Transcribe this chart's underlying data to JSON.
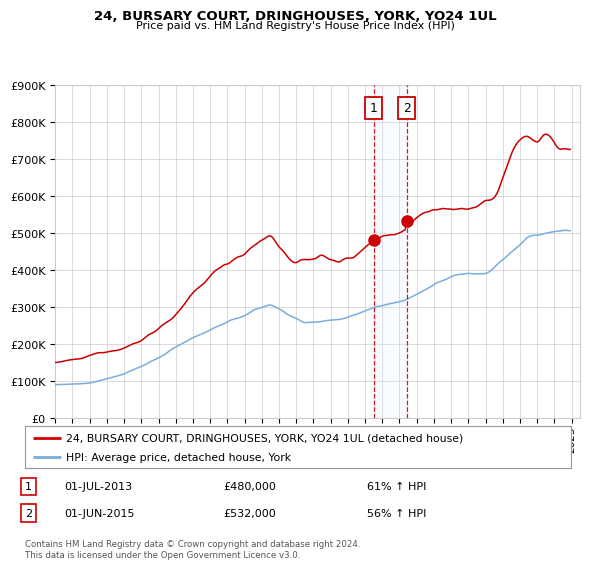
{
  "title": "24, BURSARY COURT, DRINGHOUSES, YORK, YO24 1UL",
  "subtitle": "Price paid vs. HM Land Registry's House Price Index (HPI)",
  "legend_line1": "24, BURSARY COURT, DRINGHOUSES, YORK, YO24 1UL (detached house)",
  "legend_line2": "HPI: Average price, detached house, York",
  "transaction1_date": "01-JUL-2013",
  "transaction1_price": "£480,000",
  "transaction1_hpi": "61% ↑ HPI",
  "transaction2_date": "01-JUN-2015",
  "transaction2_price": "£532,000",
  "transaction2_hpi": "56% ↑ HPI",
  "footer": "Contains HM Land Registry data © Crown copyright and database right 2024.\nThis data is licensed under the Open Government Licence v3.0.",
  "red_color": "#cc0000",
  "blue_color": "#7aaddc",
  "marker_color": "#cc0000",
  "vline_color": "#cc0000",
  "shade_color": "#ddeeff",
  "grid_color": "#cccccc",
  "background_color": "#ffffff",
  "ylim": [
    0,
    900000
  ],
  "yticks": [
    0,
    100000,
    200000,
    300000,
    400000,
    500000,
    600000,
    700000,
    800000,
    900000
  ],
  "ytick_labels": [
    "£0",
    "£100K",
    "£200K",
    "£300K",
    "£400K",
    "£500K",
    "£600K",
    "£700K",
    "£800K",
    "£900K"
  ],
  "transaction1_x": 2013.5,
  "transaction2_x": 2015.417,
  "transaction1_y": 480000,
  "transaction2_y": 532000,
  "xlim_start": 1995,
  "xlim_end": 2025.5
}
